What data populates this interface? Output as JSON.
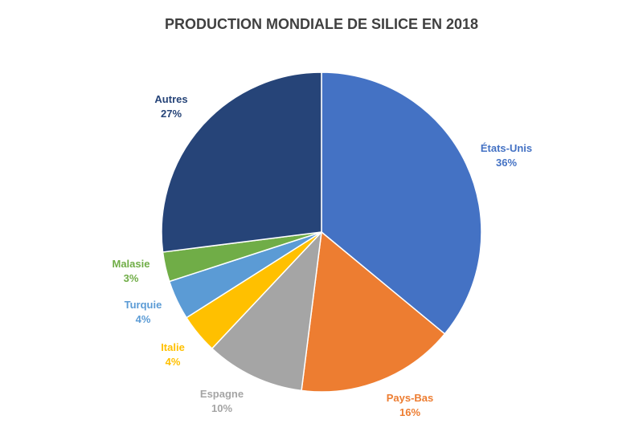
{
  "chart_data": {
    "type": "pie",
    "title": "PRODUCTION MONDIALE DE SILICE EN 2018",
    "slices": [
      {
        "label": "États-Unis",
        "value": 36,
        "value_label": "36%",
        "color": "#4472C4"
      },
      {
        "label": "Pays-Bas",
        "value": 16,
        "value_label": "16%",
        "color": "#ED7D31"
      },
      {
        "label": "Espagne",
        "value": 10,
        "value_label": "10%",
        "color": "#A5A5A5"
      },
      {
        "label": "Italie",
        "value": 4,
        "value_label": "4%",
        "color": "#FFC000"
      },
      {
        "label": "Turquie",
        "value": 4,
        "value_label": "4%",
        "color": "#5B9BD5"
      },
      {
        "label": "Malasie",
        "value": 3,
        "value_label": "3%",
        "color": "#70AD47"
      },
      {
        "label": "Autres",
        "value": 27,
        "value_label": "27%",
        "color": "#264478"
      }
    ],
    "start_angle": "12 o'clock",
    "direction": "clockwise",
    "legend": "none"
  }
}
